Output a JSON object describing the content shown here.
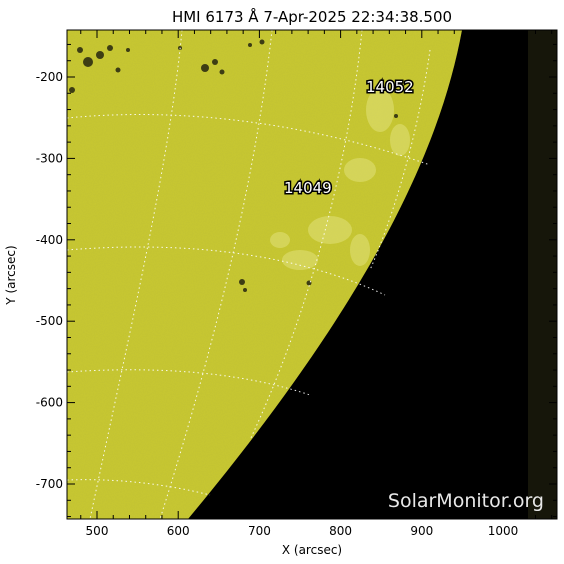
{
  "title": "HMI 6173 Å  7-Apr-2025 22:34:38.500",
  "xlabel": "X (arcsec)",
  "ylabel": "Y (arcsec)",
  "x_ticks": [
    "500",
    "600",
    "700",
    "800",
    "900",
    "1000"
  ],
  "y_ticks": [
    "-200",
    "-300",
    "-400",
    "-500",
    "-600",
    "-700"
  ],
  "regions": [
    "14052",
    "14049"
  ],
  "watermark": "SolarMonitor.org",
  "colors": {
    "disk": "#c9c92f",
    "space": "#000000",
    "frame": "#000000",
    "grid": "#ffffff",
    "label_fill": "#ffffff",
    "watermark": "#e8e8e8"
  }
}
